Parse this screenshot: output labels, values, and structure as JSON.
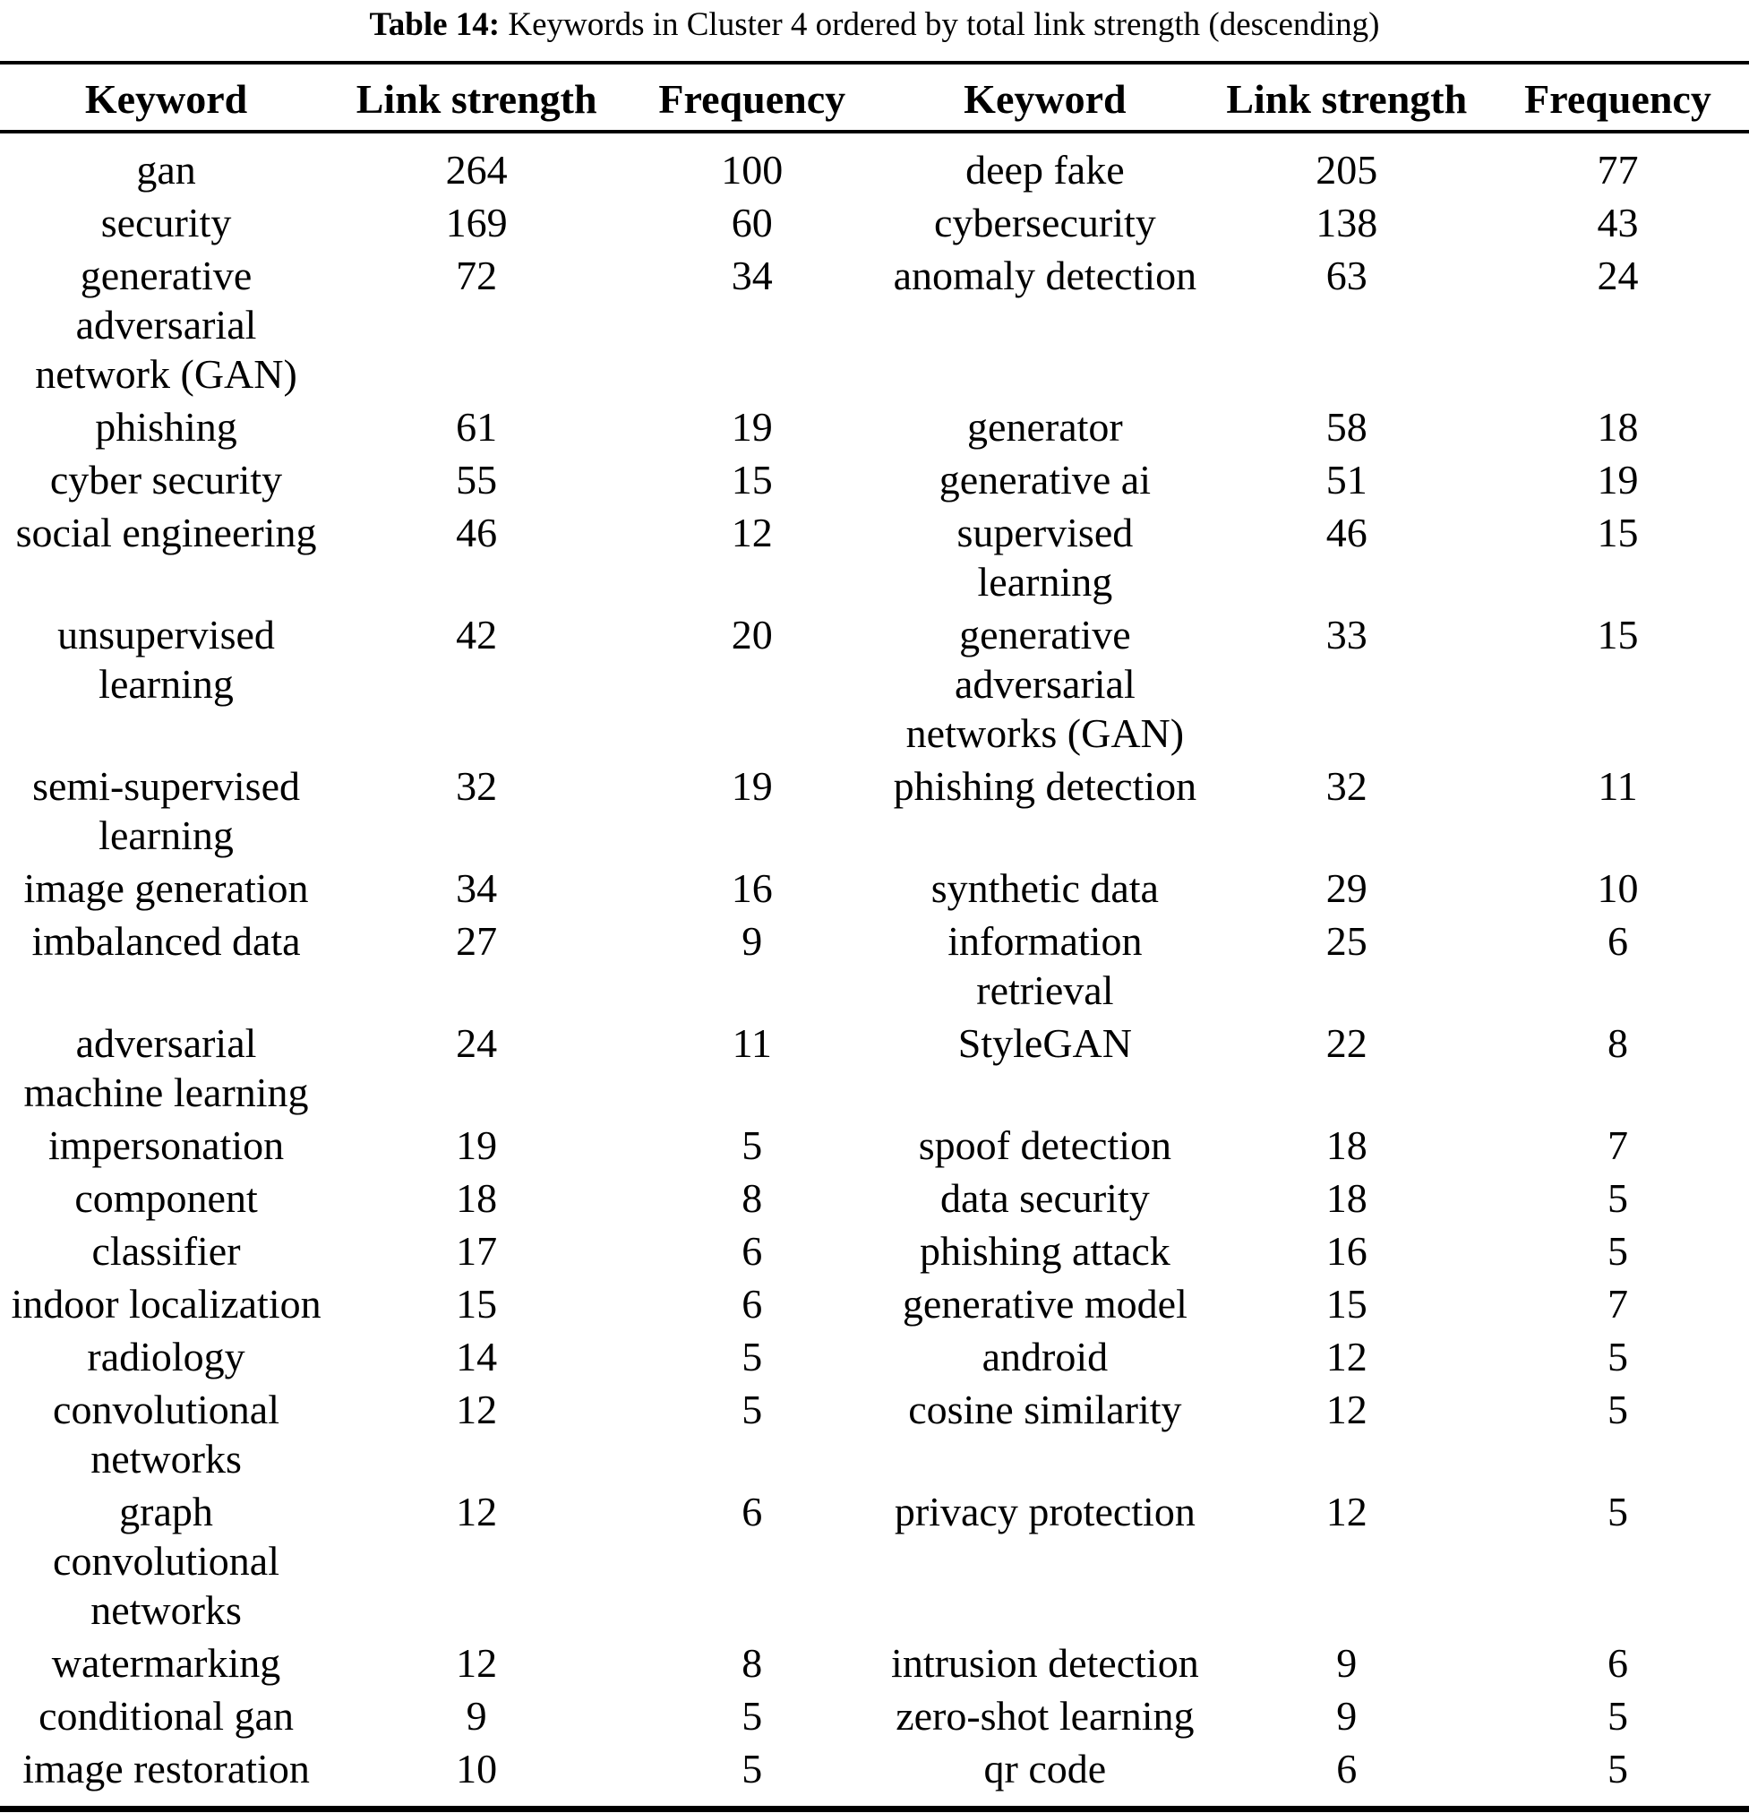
{
  "title": {
    "label": "Table 14:",
    "text": " Keywords in Cluster 4 ordered by total link strength (descending)"
  },
  "colors": {
    "text": "#000000",
    "background": "#ffffff",
    "rule": "#000000"
  },
  "table": {
    "headers": [
      "Keyword",
      "Link strength",
      "Frequency",
      "Keyword",
      "Link strength",
      "Frequency"
    ],
    "rows": [
      [
        "gan",
        264,
        100,
        "deep fake",
        205,
        77
      ],
      [
        "security",
        169,
        60,
        "cybersecurity",
        138,
        43
      ],
      [
        "generative\nadversarial\nnetwork (GAN)",
        72,
        34,
        "anomaly detection",
        63,
        24
      ],
      [
        "phishing",
        61,
        19,
        "generator",
        58,
        18
      ],
      [
        "cyber security",
        55,
        15,
        "generative ai",
        51,
        19
      ],
      [
        "social engineering",
        46,
        12,
        "supervised\nlearning",
        46,
        15
      ],
      [
        "unsupervised\nlearning",
        42,
        20,
        "generative\nadversarial\nnetworks (GAN)",
        33,
        15
      ],
      [
        "semi-supervised\nlearning",
        32,
        19,
        "phishing detection",
        32,
        11
      ],
      [
        "image generation",
        34,
        16,
        "synthetic data",
        29,
        10
      ],
      [
        "imbalanced data",
        27,
        9,
        "information\nretrieval",
        25,
        6
      ],
      [
        "adversarial\nmachine learning",
        24,
        11,
        "StyleGAN",
        22,
        8
      ],
      [
        "impersonation",
        19,
        5,
        "spoof detection",
        18,
        7
      ],
      [
        "component",
        18,
        8,
        "data security",
        18,
        5
      ],
      [
        "classifier",
        17,
        6,
        "phishing attack",
        16,
        5
      ],
      [
        "indoor localization",
        15,
        6,
        "generative model",
        15,
        7
      ],
      [
        "radiology",
        14,
        5,
        "android",
        12,
        5
      ],
      [
        "convolutional\nnetworks",
        12,
        5,
        "cosine similarity",
        12,
        5
      ],
      [
        "graph\nconvolutional\nnetworks",
        12,
        6,
        "privacy protection",
        12,
        5
      ],
      [
        "watermarking",
        12,
        8,
        "intrusion detection",
        9,
        6
      ],
      [
        "conditional gan",
        9,
        5,
        "zero-shot learning",
        9,
        5
      ],
      [
        "image restoration",
        10,
        5,
        "qr code",
        6,
        5
      ]
    ]
  }
}
